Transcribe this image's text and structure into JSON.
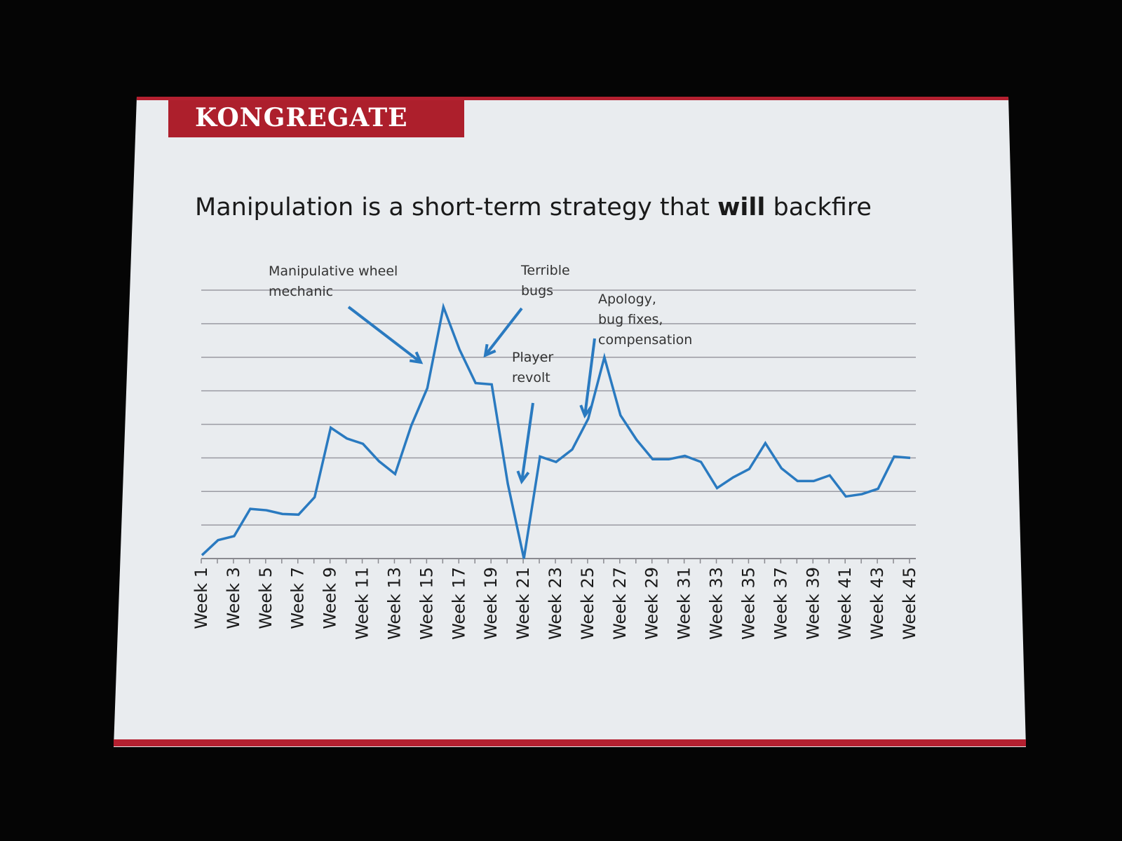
{
  "slide": {
    "brand": "KONGREGATE",
    "title": {
      "before": "Manipulation is a short-term strategy that ",
      "bold": "will",
      "after": " backfire"
    },
    "colors": {
      "brand_red": "#ad1f2c",
      "line": "#2a7ac0",
      "grid": "#9a9aa2"
    }
  },
  "chart_data": {
    "type": "line",
    "title": "",
    "xlabel": "",
    "ylabel": "",
    "ylim": [
      0,
      8
    ],
    "y_ticks_labeled": false,
    "grid": true,
    "gridlines": 8,
    "weeks": [
      1,
      2,
      3,
      4,
      5,
      6,
      7,
      8,
      9,
      10,
      11,
      12,
      13,
      14,
      15,
      16,
      17,
      18,
      19,
      20,
      21,
      22,
      23,
      24,
      25,
      26,
      27,
      28,
      29,
      30,
      31,
      32,
      33,
      34,
      35,
      36,
      37,
      38,
      39,
      40,
      41,
      42,
      43,
      44,
      45
    ],
    "x_tick_labels": [
      "Week 1",
      "Week 3",
      "Week 5",
      "Week 7",
      "Week 9",
      "Week 11",
      "Week 13",
      "Week 15",
      "Week 17",
      "Week 19",
      "Week 21",
      "Week 23",
      "Week 25",
      "Week 27",
      "Week 29",
      "Week 31",
      "Week 33",
      "Week 35",
      "Week 37",
      "Week 39",
      "Week 41",
      "Week 43",
      "Week 45"
    ],
    "values": [
      0.1,
      0.55,
      0.67,
      1.48,
      1.44,
      1.33,
      1.31,
      1.83,
      3.9,
      3.58,
      3.42,
      2.9,
      2.52,
      3.96,
      5.08,
      7.5,
      6.23,
      5.23,
      5.19,
      2.23,
      0.0,
      3.04,
      2.88,
      3.25,
      4.17,
      6.0,
      4.27,
      3.54,
      2.96,
      2.96,
      3.06,
      2.88,
      2.1,
      2.42,
      2.67,
      3.44,
      2.69,
      2.31,
      2.31,
      2.48,
      1.85,
      1.92,
      2.08,
      3.04,
      3.0
    ],
    "annotations": [
      {
        "text": "Manipulative wheel\nmechanic",
        "week": 15
      },
      {
        "text": "Terrible\nbugs",
        "week": 18
      },
      {
        "text": "Player\nrevolt",
        "week": 21
      },
      {
        "text": "Apology,\nbug fixes,\ncompensation",
        "week": 25
      }
    ]
  }
}
